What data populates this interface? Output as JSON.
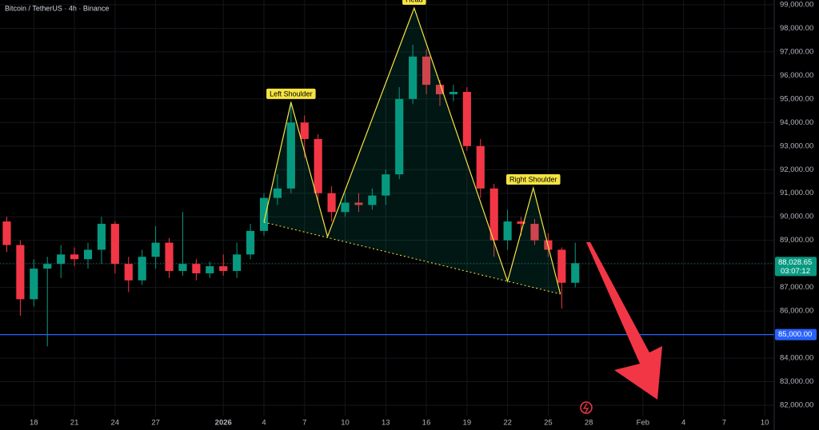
{
  "chart_data": {
    "type": "candlestick",
    "title": "Bitcoin / TetherUS · 4h · Binance",
    "up_color": "#089981",
    "down_color": "#f23645",
    "x": [
      -2,
      -1,
      0,
      1,
      2,
      3,
      4,
      5,
      6,
      7,
      8,
      9,
      10,
      11,
      12,
      13,
      14,
      15,
      16,
      17,
      18,
      19,
      20,
      21,
      22,
      23,
      24,
      25,
      26,
      27,
      28,
      29,
      30,
      31,
      32,
      33,
      34,
      35,
      36,
      37,
      38,
      39,
      40
    ],
    "open": [
      89800,
      88800,
      86500,
      87800,
      88000,
      88400,
      88200,
      88600,
      89700,
      88000,
      87300,
      88300,
      88900,
      87700,
      88000,
      87600,
      87900,
      87700,
      88400,
      89400,
      90800,
      91200,
      94000,
      93300,
      91000,
      90200,
      90600,
      90500,
      90900,
      91800,
      95000,
      96800,
      95600,
      95200,
      95300,
      93000,
      91200,
      89000,
      89800,
      89700,
      89000,
      88600,
      87200
    ],
    "high": [
      90000,
      89000,
      88200,
      88300,
      88800,
      88700,
      88900,
      90000,
      89800,
      88300,
      88600,
      89600,
      89100,
      90200,
      88200,
      88100,
      88400,
      88900,
      89700,
      91000,
      91800,
      94900,
      94300,
      93500,
      91300,
      91000,
      91000,
      91200,
      92000,
      95500,
      97300,
      97100,
      95800,
      95600,
      95500,
      93300,
      91400,
      90300,
      90000,
      89900,
      89300,
      88700,
      88900
    ],
    "low": [
      88500,
      85800,
      86200,
      84500,
      87400,
      87900,
      87800,
      88000,
      87600,
      86800,
      87100,
      87800,
      87400,
      87500,
      87300,
      87400,
      87500,
      87400,
      88200,
      89200,
      90500,
      91000,
      92500,
      90600,
      89800,
      90000,
      90200,
      90300,
      90500,
      91600,
      94800,
      95200,
      94700,
      94900,
      92800,
      90800,
      88300,
      88600,
      89200,
      88800,
      88300,
      86100,
      87000
    ],
    "close": [
      88800,
      86500,
      87800,
      88000,
      88400,
      88200,
      88600,
      89700,
      88000,
      87300,
      88300,
      88900,
      87700,
      88000,
      87600,
      87900,
      87700,
      88400,
      89400,
      90800,
      91200,
      94000,
      93300,
      91000,
      90200,
      90600,
      90500,
      90900,
      91800,
      95000,
      96800,
      95600,
      95200,
      95300,
      93000,
      91200,
      89000,
      89800,
      89700,
      89000,
      88600,
      87200,
      88028.65
    ],
    "xlim": [
      -2.5,
      54.7
    ],
    "xticks": [
      {
        "value": 0,
        "label": "18"
      },
      {
        "value": 3,
        "label": "21"
      },
      {
        "value": 6,
        "label": "24"
      },
      {
        "value": 9,
        "label": "27"
      },
      {
        "value": 14,
        "label": "2026"
      },
      {
        "value": 17,
        "label": "4"
      },
      {
        "value": 20,
        "label": "7"
      },
      {
        "value": 23,
        "label": "10"
      },
      {
        "value": 26,
        "label": "13"
      },
      {
        "value": 29,
        "label": "16"
      },
      {
        "value": 32,
        "label": "19"
      },
      {
        "value": 35,
        "label": "22"
      },
      {
        "value": 38,
        "label": "25"
      },
      {
        "value": 41,
        "label": "28"
      },
      {
        "value": 45,
        "label": "Feb"
      },
      {
        "value": 48,
        "label": "4"
      },
      {
        "value": 51,
        "label": "7"
      },
      {
        "value": 54,
        "label": "10"
      }
    ],
    "ylim": [
      81560,
      99200
    ],
    "yticks": [
      {
        "value": 82000,
        "label": "82,000.00"
      },
      {
        "value": 83000,
        "label": "83,000.00"
      },
      {
        "value": 84000,
        "label": "84,000.00"
      },
      {
        "value": 85000,
        "label": "85,000.00"
      },
      {
        "value": 86000,
        "label": "86,000.00"
      },
      {
        "value": 87000,
        "label": "87,000.00"
      },
      {
        "value": 88000,
        "label": "88,000.00"
      },
      {
        "value": 89000,
        "label": "89,000.00"
      },
      {
        "value": 90000,
        "label": "90,000.00"
      },
      {
        "value": 91000,
        "label": "91,000.00"
      },
      {
        "value": 92000,
        "label": "92,000.00"
      },
      {
        "value": 93000,
        "label": "93,000.00"
      },
      {
        "value": 94000,
        "label": "94,000.00"
      },
      {
        "value": 95000,
        "label": "95,000.00"
      },
      {
        "value": 96000,
        "label": "96,000.00"
      },
      {
        "value": 97000,
        "label": "97,000.00"
      },
      {
        "value": 98000,
        "label": "98,000.00"
      },
      {
        "value": 99000,
        "label": "99,000.00"
      }
    ],
    "grid": true,
    "price_line": {
      "value": 88028.65,
      "label": "88,028.65",
      "countdown": "03:07:12",
      "color": "#089981"
    },
    "hline": {
      "value": 85000,
      "label": "85,000.00",
      "color": "#2962ff"
    },
    "pattern": {
      "color": "#f5e342",
      "x": [
        17,
        19,
        21.7,
        28.1,
        35,
        36.9,
        38.9
      ],
      "y": [
        89770,
        94860,
        89160,
        98860,
        87260,
        91230,
        86720
      ],
      "labels": [
        {
          "text": "Left Shoulder",
          "point": 1
        },
        {
          "text": "Head",
          "point": 3
        },
        {
          "text": "Right Shoulder",
          "point": 5
        }
      ]
    }
  }
}
